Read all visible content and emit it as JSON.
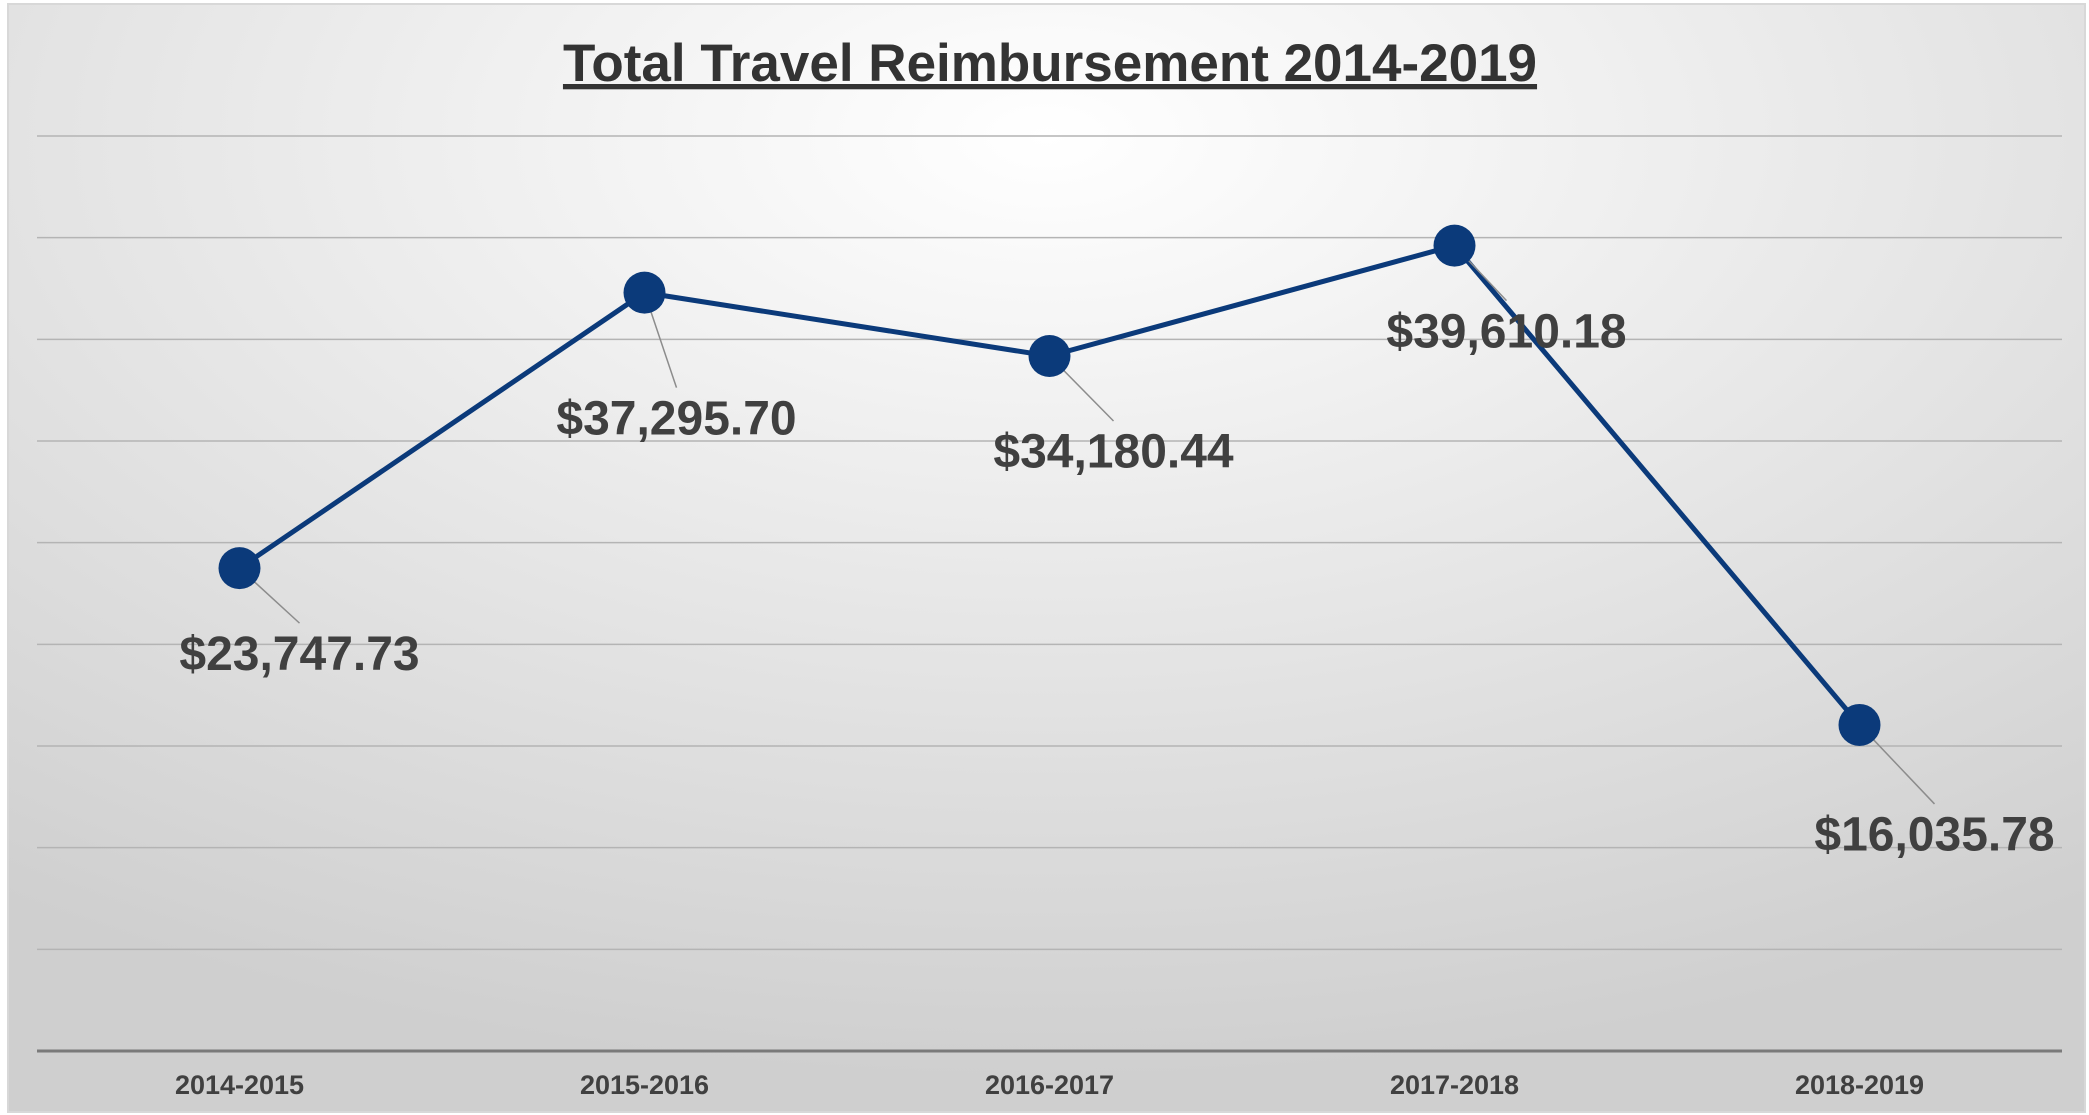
{
  "chart_data": {
    "type": "line",
    "title": "Total Travel Reimbursement 2014-2019",
    "categories": [
      "2014-2015",
      "2015-2016",
      "2016-2017",
      "2017-2018",
      "2018-2019"
    ],
    "series": [
      {
        "color": "#0b3a7a",
        "values": [
          23747.73,
          37295.7,
          34180.44,
          39610.18,
          16035.78
        ],
        "value_labels": [
          "$23,747.73",
          "$37,295.70",
          "$34,180.44",
          "$39,610.18",
          "$16,035.78"
        ]
      }
    ],
    "ylim": [
      0,
      45000
    ],
    "yticks": [
      0,
      5000,
      10000,
      15000,
      20000,
      25000,
      30000,
      35000,
      40000,
      45000
    ],
    "grid": true
  }
}
